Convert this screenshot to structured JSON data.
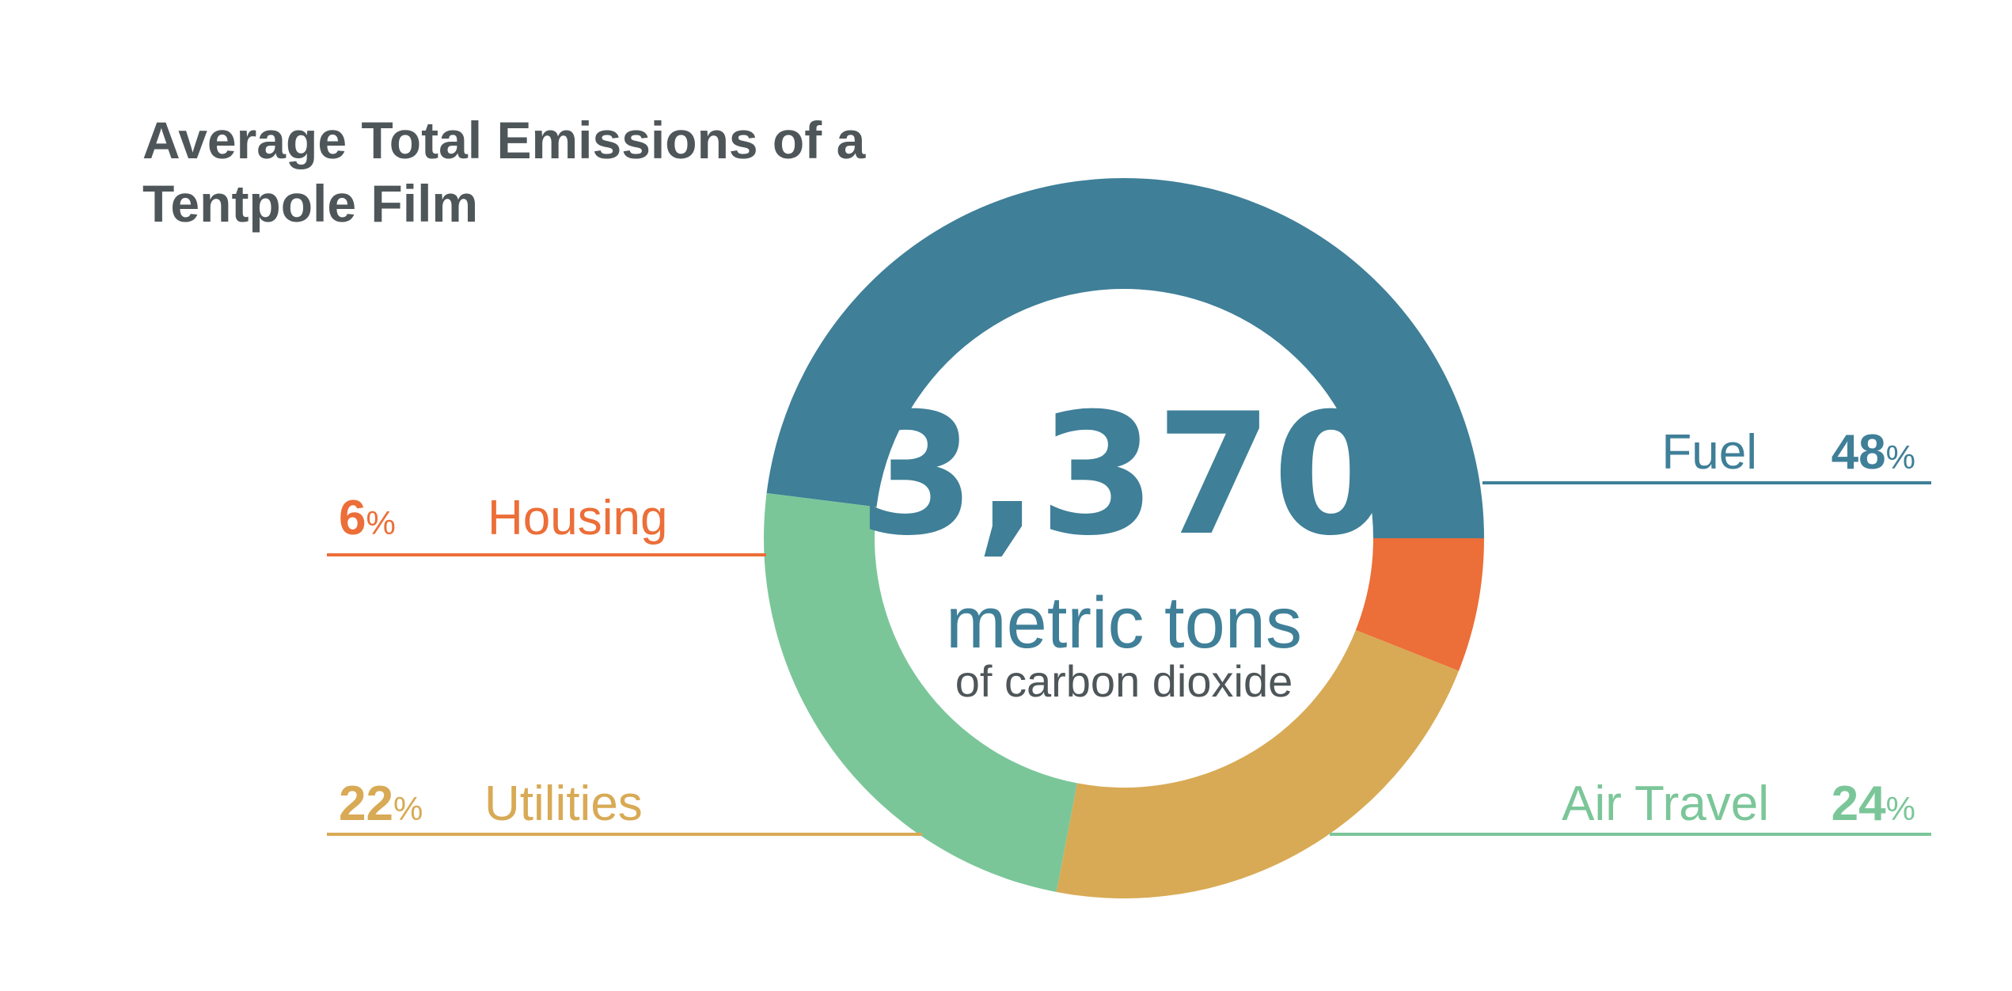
{
  "chart_data": {
    "type": "pie",
    "variant": "donut",
    "title_lines": [
      "Average Total Emissions of a",
      "Tentpole Film"
    ],
    "center": {
      "value": "3,370",
      "unit": "metric tons",
      "subtitle": "of carbon dioxide"
    },
    "categories": [
      "Fuel",
      "Air Travel",
      "Utilities",
      "Housing"
    ],
    "values": [
      48,
      24,
      22,
      6
    ],
    "percent_symbol": "%",
    "colors": [
      "#3f7f98",
      "#7bc699",
      "#d8aa55",
      "#ec6e38"
    ]
  }
}
